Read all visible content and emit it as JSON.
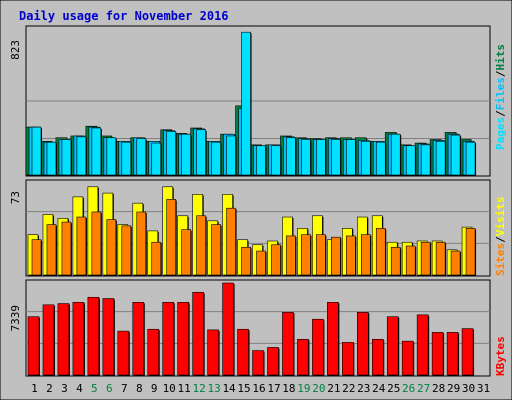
{
  "colors": {
    "background": "#c0c0c0",
    "plot_background": "#c0c0c0",
    "title": "#0000cc",
    "grid": "#808080",
    "hits_color": "#008040",
    "files_color": "#00c0ff",
    "pages_color": "#00e0ff",
    "visits_color": "#ffff00",
    "sites_color": "#ff8000",
    "kbytes_color": "#ff0000",
    "weekend_color": "#008040",
    "weekday_color": "#000000"
  },
  "chart_data": [
    {
      "type": "bar",
      "title": "Daily usage for November 2016",
      "y_tick_label": "823",
      "ylim": [
        0,
        823
      ],
      "side_labels": [
        "Pages",
        "/",
        "Files",
        "/",
        "Hits"
      ],
      "series": [
        {
          "name": "Hits",
          "values": [
            270,
            190,
            210,
            220,
            275,
            220,
            190,
            210,
            190,
            255,
            235,
            265,
            190,
            230,
            390,
            170,
            170,
            220,
            210,
            205,
            210,
            210,
            210,
            190,
            240,
            170,
            180,
            200,
            240,
            200
          ]
        },
        {
          "name": "Files",
          "values": [
            270,
            185,
            200,
            220,
            270,
            210,
            190,
            210,
            190,
            250,
            230,
            260,
            190,
            230,
            375,
            165,
            170,
            215,
            205,
            200,
            205,
            200,
            195,
            190,
            230,
            165,
            175,
            195,
            230,
            190
          ]
        },
        {
          "name": "Pages",
          "values": [
            270,
            185,
            200,
            215,
            265,
            210,
            185,
            205,
            180,
            245,
            230,
            255,
            185,
            220,
            805,
            165,
            165,
            210,
            200,
            200,
            200,
            200,
            190,
            185,
            230,
            165,
            170,
            190,
            225,
            185
          ]
        }
      ]
    },
    {
      "type": "bar",
      "y_tick_label": "73",
      "ylim": [
        0,
        73
      ],
      "side_labels": [
        "Sites",
        "/",
        "Visits"
      ],
      "series": [
        {
          "name": "Visits",
          "values": [
            32,
            48,
            45,
            62,
            70,
            65,
            40,
            57,
            35,
            70,
            47,
            64,
            43,
            64,
            28,
            24,
            27,
            46,
            37,
            47,
            28,
            37,
            46,
            47,
            26,
            26,
            27,
            27,
            20,
            38
          ]
        },
        {
          "name": "Sites",
          "values": [
            28,
            40,
            42,
            46,
            50,
            44,
            39,
            50,
            26,
            60,
            36,
            47,
            40,
            53,
            22,
            19,
            24,
            31,
            32,
            32,
            30,
            31,
            32,
            37,
            22,
            23,
            26,
            26,
            19,
            37
          ]
        }
      ]
    },
    {
      "type": "bar",
      "y_tick_label": "7339",
      "ylim": [
        0,
        7339
      ],
      "side_labels": [
        "KBytes"
      ],
      "series": [
        {
          "name": "KBytes",
          "values": [
            4650,
            5600,
            5700,
            5800,
            6200,
            6100,
            3500,
            5800,
            3650,
            5800,
            5800,
            6600,
            3600,
            7339,
            3650,
            1950,
            2200,
            5000,
            2850,
            4450,
            5800,
            2600,
            5000,
            2850,
            4650,
            2700,
            4800,
            3400,
            3400,
            3700
          ]
        }
      ]
    }
  ],
  "x_axis": {
    "days": [
      "1",
      "2",
      "3",
      "4",
      "5",
      "6",
      "7",
      "8",
      "9",
      "10",
      "11",
      "12",
      "13",
      "14",
      "15",
      "16",
      "17",
      "18",
      "19",
      "20",
      "21",
      "22",
      "23",
      "24",
      "25",
      "26",
      "27",
      "28",
      "29",
      "30",
      "31"
    ],
    "weekend_days": [
      5,
      6,
      12,
      13,
      19,
      20,
      26,
      27
    ]
  }
}
